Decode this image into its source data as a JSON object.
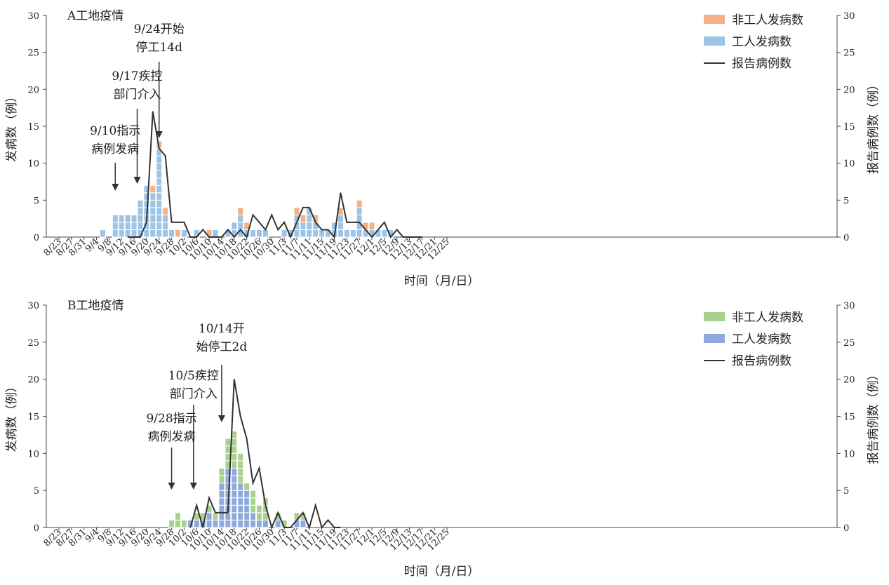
{
  "chart_data": [
    {
      "type": "bar",
      "title": "A工地疫情",
      "xlabel": "时间（月/日）",
      "ylabel": "发病数（例）",
      "ylabel_right": "报告病例数（例）",
      "ylim": [
        0,
        30
      ],
      "yticks": [
        "0",
        "5",
        "10",
        "15",
        "20",
        "25",
        "30"
      ],
      "start_date": "8/23",
      "x_tick_labels": [
        "8/23",
        "8/27",
        "8/31",
        "9/4",
        "9/8",
        "9/12",
        "9/16",
        "9/20",
        "9/24",
        "9/28",
        "10/2",
        "10/6",
        "10/10",
        "10/14",
        "10/18",
        "10/22",
        "10/26",
        "10/30",
        "11/3",
        "11/7",
        "11/11",
        "11/15",
        "11/19",
        "11/23",
        "11/27",
        "12/1",
        "12/5",
        "12/9",
        "12/13",
        "12/17",
        "12/21",
        "12/25"
      ],
      "legend": [
        "非工人发病数",
        "工人发病数",
        "报告病例数"
      ],
      "colors": {
        "worker": "#9dc3e6",
        "nonworker": "#f4b183",
        "line": "#333333"
      },
      "series": [
        {
          "name": "工人发病数",
          "x": [
            14,
            18,
            20,
            22,
            24,
            26,
            28,
            30,
            32,
            34,
            36,
            40,
            44,
            50,
            54,
            56,
            58,
            60,
            62,
            64,
            66,
            72,
            74,
            76,
            78,
            80,
            82,
            84,
            86,
            88,
            90,
            92,
            94,
            96,
            98,
            100,
            102,
            104,
            106
          ],
          "values": [
            1,
            3,
            3,
            3,
            3,
            5,
            7,
            6,
            12,
            3,
            1,
            1,
            1,
            1,
            1,
            2,
            3,
            1,
            1,
            1,
            1,
            1,
            1,
            3,
            2,
            4,
            2,
            1,
            1,
            2,
            3,
            1,
            1,
            4,
            1,
            1,
            1,
            1,
            1
          ]
        },
        {
          "name": "非工人发病数",
          "x": [
            28,
            30,
            32,
            34,
            36,
            38,
            40,
            48,
            58,
            60,
            76,
            78,
            82,
            90,
            96,
            98,
            100
          ],
          "values": [
            0,
            1,
            1,
            1,
            0,
            1,
            0,
            1,
            1,
            1,
            1,
            1,
            1,
            1,
            1,
            1,
            1
          ]
        },
        {
          "name": "报告病例数",
          "type": "line",
          "x": [
            22,
            24,
            26,
            28,
            30,
            32,
            34,
            36,
            38,
            40,
            42,
            44,
            46,
            48,
            50,
            52,
            54,
            56,
            58,
            60,
            62,
            64,
            66,
            68,
            70,
            72,
            74,
            76,
            78,
            80,
            82,
            84,
            86,
            88,
            90,
            92,
            94,
            96,
            98,
            100,
            102,
            104,
            106,
            108,
            110,
            112,
            114,
            116
          ],
          "values": [
            0,
            0,
            0,
            2,
            17,
            12,
            11,
            2,
            2,
            2,
            0,
            0,
            1,
            0,
            0,
            0,
            1,
            0,
            1,
            0,
            3,
            2,
            1,
            3,
            1,
            2,
            0,
            2,
            4,
            4,
            2,
            1,
            1,
            0,
            6,
            2,
            2,
            2,
            1,
            0,
            1,
            2,
            0,
            1,
            0,
            0,
            0,
            0
          ]
        }
      ],
      "annotations": [
        {
          "lines": [
            "9/10指示",
            "病例发病"
          ],
          "date_index": 18
        },
        {
          "lines": [
            "9/17疾控",
            "部门介入"
          ],
          "date_index": 25
        },
        {
          "lines": [
            "9/24开始",
            "停工14d"
          ],
          "date_index": 32
        }
      ]
    },
    {
      "type": "bar",
      "title": "B工地疫情",
      "xlabel": "时间（月/日）",
      "ylabel": "发病数（例）",
      "ylabel_right": "报告病例数（例）",
      "ylim": [
        0,
        30
      ],
      "yticks": [
        "0",
        "5",
        "10",
        "15",
        "20",
        "25",
        "30"
      ],
      "start_date": "8/23",
      "x_tick_labels": [
        "8/23",
        "8/27",
        "8/31",
        "9/4",
        "9/8",
        "9/12",
        "9/16",
        "9/20",
        "9/24",
        "9/28",
        "10/2",
        "10/6",
        "10/10",
        "10/14",
        "10/18",
        "10/22",
        "10/26",
        "10/30",
        "11/3",
        "11/7",
        "11/11",
        "11/15",
        "11/19",
        "11/23",
        "11/27",
        "12/1",
        "12/5",
        "12/9",
        "12/13",
        "12/17",
        "12/21",
        "12/25"
      ],
      "legend": [
        "非工人发病数",
        "工人发病数",
        "报告病例数"
      ],
      "colors": {
        "worker": "#8eaadb",
        "nonworker": "#a9d18e",
        "line": "#333333"
      },
      "series": [
        {
          "name": "工人发病数",
          "x": [
            42,
            44,
            46,
            48,
            50,
            52,
            54,
            56,
            58,
            60,
            62,
            64,
            66,
            70,
            76,
            78
          ],
          "values": [
            1,
            1,
            1,
            2,
            1,
            6,
            8,
            8,
            6,
            5,
            2,
            1,
            1,
            1,
            1,
            1
          ]
        },
        {
          "name": "非工人发病数",
          "x": [
            36,
            38,
            40,
            44,
            46,
            48,
            50,
            52,
            54,
            56,
            58,
            60,
            62,
            64,
            66,
            70,
            72,
            76,
            78
          ],
          "values": [
            1,
            2,
            1,
            1,
            1,
            1,
            1,
            2,
            4,
            5,
            4,
            1,
            3,
            2,
            3,
            1,
            1,
            1,
            1
          ]
        },
        {
          "name": "报告病例数",
          "type": "line",
          "x": [
            42,
            44,
            46,
            48,
            50,
            52,
            54,
            56,
            58,
            60,
            62,
            64,
            66,
            68,
            70,
            72,
            74,
            76,
            78,
            80,
            82,
            84,
            86,
            88,
            90
          ],
          "values": [
            0,
            3,
            0,
            4,
            2,
            2,
            2,
            20,
            15,
            12,
            6,
            8,
            3,
            0,
            2,
            0,
            0,
            1,
            2,
            0,
            3,
            0,
            1,
            0,
            0
          ]
        }
      ],
      "annotations": [
        {
          "lines": [
            "9/28指示",
            "病例发病"
          ],
          "date_index": 36
        },
        {
          "lines": [
            "10/5疾控",
            "部门介入"
          ],
          "date_index": 43
        },
        {
          "lines": [
            "10/14开",
            "始停工2d"
          ],
          "date_index": 52
        }
      ]
    }
  ]
}
